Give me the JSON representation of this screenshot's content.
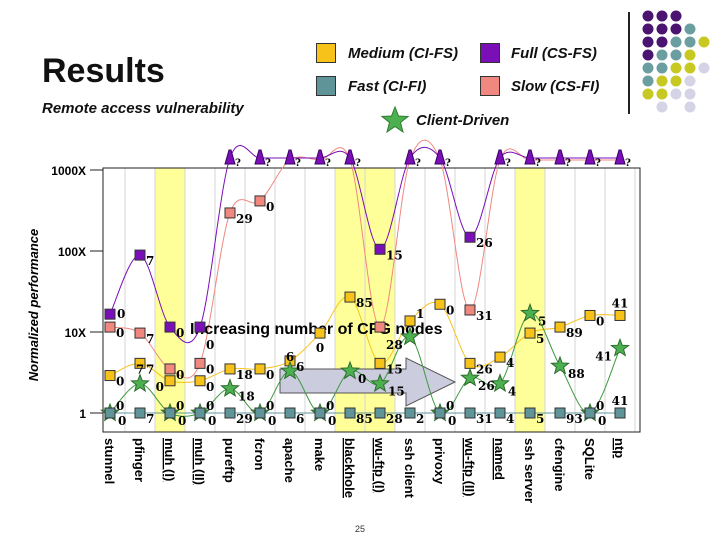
{
  "title": "Results",
  "subtitle": "Remote access vulnerability",
  "page_number": "25",
  "legend": [
    {
      "label": "Medium (CI-FS)",
      "color": "#f7c31a",
      "key": "medium"
    },
    {
      "label": "Full (CS-FS)",
      "color": "#7a0fb8",
      "key": "full"
    },
    {
      "label": "Fast (CI-FI)",
      "color": "#5f9598",
      "key": "fast"
    },
    {
      "label": "Slow (CS-FI)",
      "color": "#f08880",
      "key": "slow"
    },
    {
      "label": "Client-Driven",
      "color": "#4caf50",
      "key": "client"
    }
  ],
  "annotation": "Increasing number of CFG nodes",
  "chart_data": {
    "type": "line",
    "ylabel": "Normalized performance",
    "yscale": "log",
    "ylim": [
      1,
      1000
    ],
    "yticks": [
      {
        "value": 1,
        "label": "1"
      },
      {
        "value": 10,
        "label": "10X"
      },
      {
        "value": 100,
        "label": "100X"
      },
      {
        "value": 1000,
        "label": "1000X"
      }
    ],
    "categories": [
      "stunnel",
      "pfinger",
      "muh (I)",
      "muh (II)",
      "pureftp",
      "fcron",
      "apache",
      "make",
      "blackhole",
      "wu-ftp (I)",
      "ssh client",
      "privoxy",
      "wu-ftp (II)",
      "named",
      "ssh server",
      "cfengine",
      "SQLite",
      "ntp"
    ],
    "underlined_categories": [
      "muh (I)",
      "muh (II)",
      "blackhole",
      "wu-ftp (I)",
      "wu-ftp (II)",
      "named",
      "ntp"
    ],
    "highlighted_categories": [
      "muh (I)",
      "blackhole",
      "wu-ftp (I)",
      "ssh server"
    ],
    "unknown_marker": "?",
    "series": [
      {
        "key": "slow",
        "values": [
          11.5,
          9.7,
          3.5,
          4.1,
          295,
          415,
          null,
          null,
          null,
          11.5,
          null,
          null,
          18.7,
          null,
          null,
          null,
          null,
          null
        ],
        "labels": [
          "0",
          "7",
          "0",
          "0",
          "29",
          "0",
          "",
          "",
          "",
          "28",
          "",
          "",
          "31",
          "",
          "",
          "",
          "",
          ""
        ]
      },
      {
        "key": "full",
        "values": [
          16.6,
          89,
          11.5,
          11.5,
          null,
          null,
          null,
          null,
          null,
          105,
          null,
          null,
          148,
          null,
          null,
          null,
          null,
          null
        ],
        "labels": [
          "0",
          "7",
          "0",
          "0",
          "?",
          "?",
          "?",
          "?",
          "?",
          "15",
          "?",
          "?",
          "26",
          "?",
          "?",
          "?",
          "?",
          "?"
        ]
      },
      {
        "key": "medium",
        "values": [
          2.9,
          4.1,
          2.5,
          2.5,
          3.5,
          3.5,
          4.4,
          9.7,
          27,
          4.1,
          13.7,
          22,
          4.1,
          4.9,
          9.7,
          11.5,
          16,
          16
        ],
        "labels": [
          "0",
          "7",
          "0",
          "0",
          "18",
          "0",
          "6",
          "0",
          "85",
          "15",
          "1",
          "0",
          "26",
          "4",
          "5",
          "89",
          "0",
          "41"
        ]
      },
      {
        "key": "client",
        "values": [
          1,
          2.3,
          1,
          1,
          2.0,
          1,
          3.3,
          1,
          3.3,
          2.3,
          8.7,
          1,
          2.7,
          2.3,
          17,
          3.8,
          1,
          6.3
        ],
        "labels": [
          "0",
          "7",
          "0",
          "0",
          "18",
          "0",
          "6",
          "0",
          "0",
          "15",
          "",
          "0",
          "26",
          "4",
          "5",
          "88",
          "0",
          "41"
        ]
      },
      {
        "key": "fast",
        "values": [
          1,
          1,
          1,
          1,
          1,
          1,
          1,
          1,
          1,
          1,
          1,
          1,
          1,
          1,
          1,
          1,
          1,
          1
        ],
        "labels": [
          "0",
          "7",
          "0",
          "0",
          "29",
          "0",
          "6",
          "0",
          "85",
          "28",
          "2",
          "0",
          "31",
          "4",
          "5",
          "93",
          "0",
          "41"
        ]
      }
    ]
  }
}
